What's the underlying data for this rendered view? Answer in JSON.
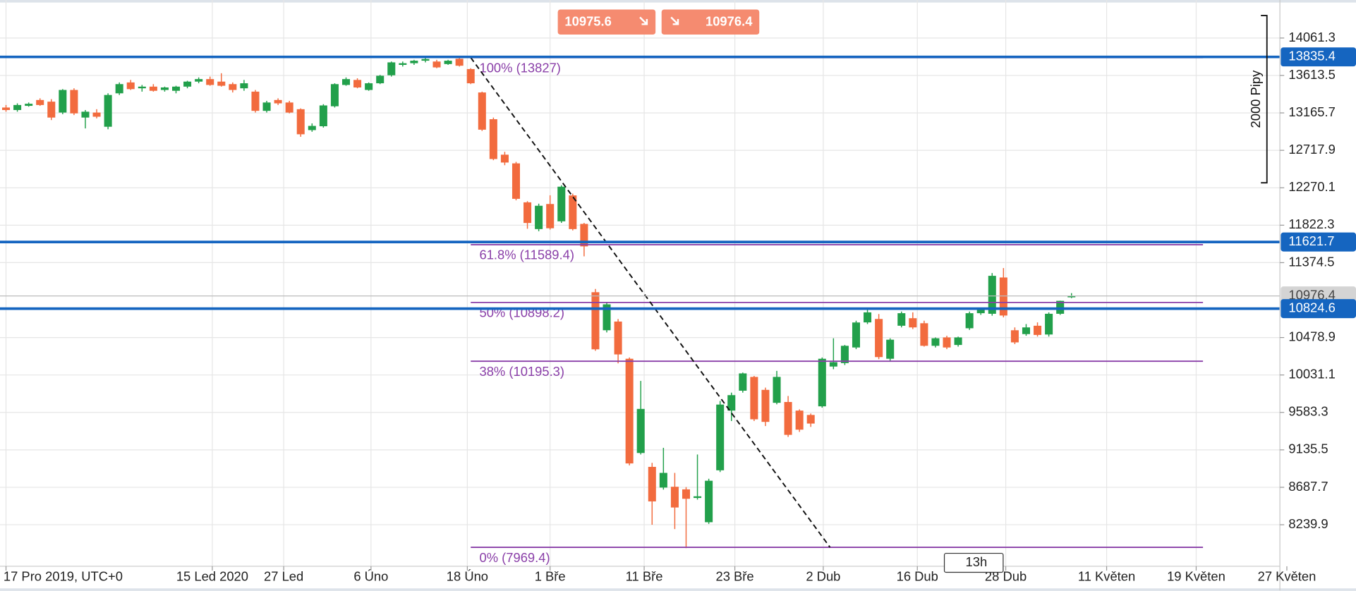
{
  "chart_data": {
    "type": "candlestick",
    "open": [
      13230,
      13200,
      13250,
      13320,
      13300,
      13170,
      13440,
      13110,
      13170,
      13000,
      13400,
      13530,
      13460,
      13480,
      13440,
      13430,
      13480,
      13540,
      13570,
      13540,
      13510,
      13460,
      13420,
      13190,
      13320,
      13290,
      13210,
      12960,
      13006,
      13245,
      13500,
      13560,
      13440,
      13520,
      13616,
      13740,
      13760,
      13790,
      13780,
      13750,
      13813,
      13690,
      13410,
      13090,
      12666,
      12562,
      12096,
      11776,
      12076,
      11869,
      12179,
      11838,
      11021,
      10566,
      10670,
      10225,
      9098,
      8932,
      8684,
      8694,
      8663,
      8560,
      8270,
      8891,
      9605,
      9843,
      10008,
      9853,
      9698,
      9708,
      9605,
      9553,
      9656,
      10132,
      10173,
      10360,
      10660,
      10701,
      10225,
      10620,
      10710,
      10650,
      10380,
      10480,
      10390,
      10590,
      10770,
      10763,
      11197,
      10566,
      10520,
      10620,
      10515,
      10763,
      10960
    ],
    "high": [
      13260,
      13280,
      13290,
      13340,
      13330,
      13450,
      13460,
      13200,
      13210,
      13400,
      13530,
      13560,
      13500,
      13510,
      13480,
      13490,
      13550,
      13590,
      13600,
      13640,
      13530,
      13560,
      13440,
      13310,
      13340,
      13310,
      13220,
      13040,
      13270,
      13520,
      13590,
      13580,
      13530,
      13620,
      13780,
      13780,
      13800,
      13820,
      13800,
      13800,
      13827,
      13700,
      13420,
      13110,
      12700,
      12580,
      12110,
      12080,
      12180,
      12300,
      12200,
      11850,
      11060,
      10900,
      10700,
      10240,
      9960,
      8980,
      9160,
      8860,
      8690,
      9080,
      8790,
      9720,
      9820,
      10060,
      10020,
      9880,
      10080,
      9780,
      9620,
      9570,
      10240,
      10470,
      10390,
      10680,
      10820,
      10760,
      10470,
      10790,
      10780,
      10680,
      10480,
      10500,
      10490,
      10790,
      10830,
      11250,
      11310,
      10600,
      10640,
      10660,
      10780,
      10920,
      11010
    ],
    "low": [
      13180,
      13180,
      13240,
      13250,
      13080,
      13150,
      13140,
      12980,
      13100,
      12970,
      13380,
      13440,
      13420,
      13420,
      13420,
      13400,
      13460,
      13520,
      13490,
      13480,
      13410,
      13430,
      13170,
      13170,
      13260,
      13160,
      12880,
      12940,
      12990,
      13230,
      13490,
      13460,
      13430,
      13510,
      13600,
      13720,
      13740,
      13770,
      13700,
      13740,
      13720,
      13510,
      12950,
      12600,
      12540,
      12120,
      11780,
      11750,
      11770,
      11850,
      11760,
      11450,
      10320,
      10540,
      10170,
      8950,
      9080,
      8240,
      8660,
      8188,
      7960,
      8540,
      8250,
      8870,
      9480,
      9820,
      9480,
      9420,
      9680,
      9290,
      9350,
      9410,
      9640,
      10100,
      10150,
      10340,
      10640,
      10220,
      10200,
      10600,
      10580,
      10370,
      10360,
      10340,
      10370,
      10570,
      10750,
      10740,
      10720,
      10400,
      10500,
      10490,
      10490,
      10750,
      10950
    ],
    "close": [
      13200,
      13260,
      13275,
      13260,
      13110,
      13440,
      13160,
      13180,
      13120,
      13380,
      13510,
      13450,
      13480,
      13430,
      13470,
      13480,
      13540,
      13570,
      13500,
      13490,
      13440,
      13520,
      13190,
      13290,
      13280,
      13170,
      12910,
      13010,
      13255,
      13510,
      13570,
      13470,
      13520,
      13610,
      13770,
      13760,
      13790,
      13810,
      13710,
      13790,
      13730,
      13520,
      12965,
      12614,
      12572,
      12138,
      11849,
      12055,
      11786,
      12283,
      11776,
      11569,
      10338,
      10876,
      10277,
      8973,
      9625,
      8519,
      8860,
      8446,
      8550,
      8580,
      8766,
      9677,
      9790,
      10050,
      9501,
      9470,
      10008,
      9315,
      9377,
      9450,
      10225,
      10184,
      10380,
      10659,
      10780,
      10245,
      10453,
      10770,
      10600,
      10380,
      10470,
      10360,
      10480,
      10770,
      10820,
      11217,
      10742,
      10421,
      10600,
      10510,
      10763,
      10918,
      10976
    ],
    "up_color": "#22a04b",
    "down_color": "#f26b3e",
    "xlim": [
      -0.53,
      119.1
    ],
    "xticks": [
      {
        "value": 0,
        "label": "17 Pro 2019, UTC+0"
      },
      {
        "value": 18.2,
        "label": "15 Led 2020"
      },
      {
        "value": 24.5,
        "label": "27 Led"
      },
      {
        "value": 32.2,
        "label": "6 Úno"
      },
      {
        "value": 40.7,
        "label": "18 Úno"
      },
      {
        "value": 48,
        "label": "1 Bře"
      },
      {
        "value": 56.3,
        "label": "11 Bře"
      },
      {
        "value": 64.3,
        "label": "23 Bře"
      },
      {
        "value": 72.1,
        "label": "2 Dub"
      },
      {
        "value": 80.4,
        "label": "16 Dub"
      },
      {
        "value": 88.2,
        "label": "28 Dub"
      },
      {
        "value": 97.1,
        "label": "11 Květen"
      },
      {
        "value": 105,
        "label": "19 Květen"
      },
      {
        "value": 113,
        "label": "27 Květen"
      }
    ],
    "ylim": [
      7743,
      14516
    ],
    "yticks": [
      14061.3,
      13613.5,
      13165.7,
      12717.9,
      12270.1,
      11822.3,
      11374.5,
      10478.9,
      10031.1,
      9583.3,
      9135.5,
      8687.7,
      8239.9
    ],
    "grid": true,
    "price_lines": [
      13835.4,
      11621.7,
      10824.6
    ],
    "price_line_color": "#1565c0",
    "current_price": 10976.4,
    "fibonacci": {
      "from": 41,
      "to": 105.6,
      "color": "#8a3fa8",
      "levels": [
        {
          "value": 13827,
          "label": "100% (13827)"
        },
        {
          "value": 11589.4,
          "label": "61.8% (11589.4)"
        },
        {
          "value": 10898.2,
          "label": "50% (10898.2)"
        },
        {
          "value": 10195.3,
          "label": "38% (10195.3)"
        },
        {
          "value": 7969.4,
          "label": "0% (7969.4)"
        }
      ]
    },
    "trend_line": {
      "x": [
        41,
        72.7
      ],
      "y": [
        13827,
        7969.4
      ]
    },
    "ruler": {
      "label": "2000 Pipy",
      "from": 14330,
      "to": 12330
    },
    "sell_price": 10975.6,
    "buy_price": 10976.4,
    "bar_countdown": "13h"
  }
}
